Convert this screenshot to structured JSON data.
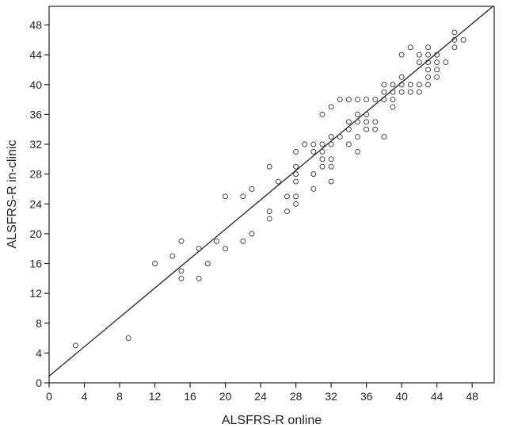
{
  "chart_data": {
    "type": "scatter",
    "title": "",
    "xlabel": "ALSFRS-R online",
    "ylabel": "ALSFRS-R in-clinic",
    "xlim": [
      0,
      50.5
    ],
    "ylim": [
      0,
      50.5
    ],
    "xticks": [
      0,
      4,
      8,
      12,
      16,
      20,
      24,
      28,
      32,
      36,
      40,
      44,
      48
    ],
    "yticks": [
      0,
      4,
      8,
      12,
      16,
      20,
      24,
      28,
      32,
      36,
      40,
      44,
      48
    ],
    "grid": false,
    "legend": "none",
    "colors": {
      "axis": "#222222",
      "marker": "#333333",
      "line": "#222222"
    },
    "regression_line": {
      "intercept": 0.9,
      "slope": 0.985
    },
    "points": [
      [
        3,
        5
      ],
      [
        9,
        6
      ],
      [
        12,
        16
      ],
      [
        14,
        17
      ],
      [
        15,
        19
      ],
      [
        15,
        15
      ],
      [
        15,
        14
      ],
      [
        17,
        18
      ],
      [
        17,
        14
      ],
      [
        18,
        16
      ],
      [
        19,
        19
      ],
      [
        20,
        25
      ],
      [
        20,
        18
      ],
      [
        22,
        25
      ],
      [
        22,
        19
      ],
      [
        23,
        26
      ],
      [
        23,
        20
      ],
      [
        25,
        29
      ],
      [
        25,
        23
      ],
      [
        25,
        22
      ],
      [
        26,
        27
      ],
      [
        27,
        25
      ],
      [
        27,
        23
      ],
      [
        28,
        31
      ],
      [
        28,
        29
      ],
      [
        28,
        28
      ],
      [
        28,
        27
      ],
      [
        28,
        25
      ],
      [
        28,
        24
      ],
      [
        29,
        32
      ],
      [
        30,
        32
      ],
      [
        30,
        31
      ],
      [
        30,
        28
      ],
      [
        30,
        26
      ],
      [
        31,
        36
      ],
      [
        31,
        32
      ],
      [
        31,
        31
      ],
      [
        31,
        30
      ],
      [
        31,
        29
      ],
      [
        32,
        37
      ],
      [
        32,
        33
      ],
      [
        32,
        32
      ],
      [
        32,
        30
      ],
      [
        32,
        29
      ],
      [
        32,
        27
      ],
      [
        33,
        38
      ],
      [
        33,
        33
      ],
      [
        34,
        38
      ],
      [
        34,
        35
      ],
      [
        34,
        34
      ],
      [
        34,
        32
      ],
      [
        35,
        38
      ],
      [
        35,
        36
      ],
      [
        35,
        35
      ],
      [
        35,
        33
      ],
      [
        35,
        31
      ],
      [
        36,
        38
      ],
      [
        36,
        36
      ],
      [
        36,
        35
      ],
      [
        36,
        34
      ],
      [
        37,
        38
      ],
      [
        37,
        35
      ],
      [
        37,
        34
      ],
      [
        38,
        40
      ],
      [
        38,
        39
      ],
      [
        38,
        38
      ],
      [
        38,
        33
      ],
      [
        39,
        40
      ],
      [
        39,
        39
      ],
      [
        39,
        38
      ],
      [
        39,
        37
      ],
      [
        40,
        44
      ],
      [
        40,
        41
      ],
      [
        40,
        40
      ],
      [
        40,
        39
      ],
      [
        41,
        45
      ],
      [
        41,
        40
      ],
      [
        41,
        39
      ],
      [
        42,
        44
      ],
      [
        42,
        43
      ],
      [
        42,
        40
      ],
      [
        42,
        39
      ],
      [
        43,
        45
      ],
      [
        43,
        44
      ],
      [
        43,
        43
      ],
      [
        43,
        42
      ],
      [
        43,
        41
      ],
      [
        43,
        40
      ],
      [
        44,
        44
      ],
      [
        44,
        43
      ],
      [
        44,
        42
      ],
      [
        44,
        41
      ],
      [
        45,
        43
      ],
      [
        46,
        47
      ],
      [
        46,
        46
      ],
      [
        46,
        45
      ],
      [
        47,
        46
      ]
    ]
  }
}
